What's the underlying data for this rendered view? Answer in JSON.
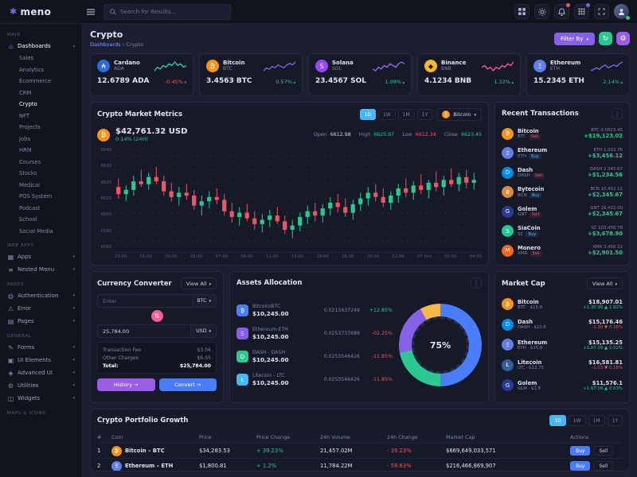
{
  "topbar": {
    "logo_text": "meno",
    "search_placeholder": "Search for Results..."
  },
  "page_header": {
    "title": "Crypto",
    "breadcrumb_root": "Dashboards",
    "breadcrumb_sep": "›",
    "breadcrumb_current": "Crypto",
    "filter_label": "Filter By"
  },
  "sidebar_items": [
    {
      "t": "section",
      "label": "MAIN"
    },
    {
      "t": "item",
      "label": "Dashboards",
      "icon": "⌂",
      "chev": "▴",
      "state": "active"
    },
    {
      "t": "child",
      "label": "Sales"
    },
    {
      "t": "child",
      "label": "Analytics"
    },
    {
      "t": "child",
      "label": "Ecommerce"
    },
    {
      "t": "child",
      "label": "CRM"
    },
    {
      "t": "child",
      "label": "Crypto",
      "state": "active"
    },
    {
      "t": "child",
      "label": "NFT"
    },
    {
      "t": "child",
      "label": "Projects"
    },
    {
      "t": "child",
      "label": "Jobs"
    },
    {
      "t": "child",
      "label": "HRM"
    },
    {
      "t": "child",
      "label": "Courses"
    },
    {
      "t": "child",
      "label": "Stocks"
    },
    {
      "t": "child",
      "label": "Medical"
    },
    {
      "t": "child",
      "label": "POS System"
    },
    {
      "t": "child",
      "label": "Podcast"
    },
    {
      "t": "child",
      "label": "School"
    },
    {
      "t": "child",
      "label": "Social Media"
    },
    {
      "t": "section",
      "label": "WEB APPS"
    },
    {
      "t": "item",
      "label": "Apps",
      "icon": "▦",
      "chev": "▾"
    },
    {
      "t": "item",
      "label": "Nested Menu",
      "icon": "≡",
      "chev": "▾"
    },
    {
      "t": "section",
      "label": "PAGES"
    },
    {
      "t": "item",
      "label": "Authentication",
      "icon": "◍",
      "chev": "▾"
    },
    {
      "t": "item",
      "label": "Error",
      "icon": "⚠",
      "chev": "▾"
    },
    {
      "t": "item",
      "label": "Pages",
      "icon": "▤",
      "chev": "▾"
    },
    {
      "t": "section",
      "label": "GENERAL"
    },
    {
      "t": "item",
      "label": "Forms",
      "icon": "✎",
      "chev": "▾"
    },
    {
      "t": "item",
      "label": "UI Elements",
      "icon": "▣",
      "chev": "▾"
    },
    {
      "t": "item",
      "label": "Advanced UI",
      "icon": "◈",
      "chev": "▾"
    },
    {
      "t": "item",
      "label": "Utilities",
      "icon": "⚙",
      "chev": "▾"
    },
    {
      "t": "item",
      "label": "Widgets",
      "icon": "◫",
      "chev": "▾"
    },
    {
      "t": "section",
      "label": "MAPS & ICONS"
    }
  ],
  "crypto_cards": [
    {
      "name": "Cardano",
      "symbol": "ADA",
      "value": "12.6789 ADA",
      "change": "-0.45%",
      "dir": "down",
      "icon": "₳",
      "icon_class": "c-ada",
      "spark": "cardano-spark"
    },
    {
      "name": "Bitcoin",
      "symbol": "BTC",
      "value": "3.4563 BTC",
      "change": "0.57%",
      "dir": "up",
      "icon": "₿",
      "icon_class": "c-btc",
      "spark": "bitcoin-spark"
    },
    {
      "name": "Solana",
      "symbol": "SOL",
      "value": "23.4567 SOL",
      "change": "1.09%",
      "dir": "up",
      "icon": "S",
      "icon_class": "c-sol",
      "spark": "solana-spark"
    },
    {
      "name": "Binance",
      "symbol": "BNB",
      "value": "4.1234 BNB",
      "change": "1.32%",
      "dir": "up",
      "icon": "◆",
      "icon_class": "c-bnb",
      "spark": "binance-spark"
    },
    {
      "name": "Ethereum",
      "symbol": "ETH",
      "value": "15.2345 ETH",
      "change": "2.14%",
      "dir": "up",
      "icon": "Ξ",
      "icon_class": "c-eth",
      "spark": "ethereum-spark"
    }
  ],
  "metrics": {
    "title": "Crypto Market Metrics",
    "coin": "Bitcoin",
    "coin_icon": "₿",
    "price": "$42,761.32 USD",
    "change": "0.14% (24H)",
    "ranges": [
      {
        "label": "1D",
        "state": "active"
      },
      {
        "label": "1W"
      },
      {
        "label": "1M"
      },
      {
        "label": "1Y"
      }
    ],
    "stats": [
      {
        "label": "Open",
        "value": "6612.98",
        "cls": "stat-plain"
      },
      {
        "label": "High",
        "value": "6625.97",
        "cls": "stat-up"
      },
      {
        "label": "Low",
        "value": "6612.34",
        "cls": "stat-down"
      },
      {
        "label": "Close",
        "value": "6623.45",
        "cls": "stat-up"
      }
    ]
  },
  "transactions": {
    "title": "Recent Transactions",
    "rows": [
      {
        "name": "Bitcoin",
        "symbol": "BTC",
        "side": "Sell",
        "side_cls": "badge-sell",
        "icon": "₿",
        "icon_class": "c-btc",
        "sub": "BTC 0.0823.45",
        "amount": "+$19,123.02"
      },
      {
        "name": "Ethereum",
        "symbol": "ETH",
        "side": "Buy",
        "side_cls": "badge-buy",
        "icon": "Ξ",
        "icon_class": "c-eth",
        "sub": "ETH 1.032.76",
        "amount": "+$3,456.12"
      },
      {
        "name": "Dash",
        "symbol": "DASH",
        "side": "Sell",
        "side_cls": "badge-sell",
        "icon": "D",
        "icon_class": "c-dash",
        "sub": "DASH 2.345.67",
        "amount": "+$1,234.56"
      },
      {
        "name": "Bytecoin",
        "symbol": "BCN",
        "side": "Buy",
        "side_cls": "badge-buy",
        "icon": "B",
        "icon_class": "c-bcn",
        "sub": "BCN 10.432.12",
        "amount": "+$2,345.67"
      },
      {
        "name": "Golem",
        "symbol": "GNT",
        "side": "Sell",
        "side_cls": "badge-sell",
        "icon": "G",
        "icon_class": "c-gnt",
        "sub": "GNT 16.432.00",
        "amount": "+$2,345.67"
      },
      {
        "name": "SiaCoin",
        "symbol": "SC",
        "side": "Buy",
        "side_cls": "badge-buy",
        "icon": "S",
        "icon_class": "c-sc",
        "sub": "SC 103.456.78",
        "amount": "+$3,678.90"
      },
      {
        "name": "Monero",
        "symbol": "XMR",
        "side": "Sell",
        "side_cls": "badge-sell",
        "icon": "M",
        "icon_class": "c-xmr",
        "sub": "XMR 3.456.32",
        "amount": "+$2,901.50"
      }
    ]
  },
  "converter": {
    "title": "Currency Converter",
    "view_all": "View All",
    "from_placeholder": "Enter",
    "from_currency": "BTC",
    "to_value": "25,784.00",
    "to_currency": "USD",
    "fee_label": "Transaction Fee",
    "fee_value": "$3.04",
    "charges_label": "Other Charges",
    "charges_value": "$6.55",
    "total_label": "Total:",
    "total_value": "$25,784.00",
    "history_label": "History →",
    "convert_label": "Convert →"
  },
  "allocation": {
    "title": "Assets Allocation",
    "rows": [
      {
        "name": "Bitcoin/BTC",
        "value": "$10,245.00",
        "qty": "0.0215637249",
        "change": "+12.85%",
        "dir": "up",
        "icon": "₿",
        "icon_class": "a-btc"
      },
      {
        "name": "Ethereum-ETH",
        "value": "$10,245.00",
        "qty": "0.0253737689",
        "change": "-02.25%",
        "dir": "down",
        "icon": "Ξ",
        "icon_class": "a-eth"
      },
      {
        "name": "DASH - DASH",
        "value": "$10,245.00",
        "qty": "0.0253546426",
        "change": "-11.85%",
        "dir": "down",
        "icon": "D",
        "icon_class": "a-dash"
      },
      {
        "name": "Litecoin - LTC",
        "value": "$10,245.00",
        "qty": "0.0253546426",
        "change": "-11.85%",
        "dir": "down",
        "icon": "Ł",
        "icon_class": "a-ltc"
      }
    ]
  },
  "market_cap": {
    "title": "Market Cap",
    "view_all": "View All",
    "rows": [
      {
        "name": "Bitcoin",
        "sub": "BTC · $15.8",
        "icon": "₿",
        "icon_class": "c-btc",
        "value": "$18,907.01",
        "change": "+1.30.90 ▲ 1.92%",
        "dir": "up"
      },
      {
        "name": "Dash",
        "sub": "DASH · $23.8",
        "icon": "D",
        "icon_class": "c-dash",
        "value": "$15,176.46",
        "change": "-1.30 ▼ 0.18%",
        "dir": "down"
      },
      {
        "name": "Ethereum",
        "sub": "ETH · $15.8",
        "icon": "Ξ",
        "icon_class": "c-eth",
        "value": "$15,135.25",
        "change": "+1.07.09 ▲ 1.02%",
        "dir": "up"
      },
      {
        "name": "Litecoin",
        "sub": "LTC · $13.75",
        "icon": "Ł",
        "icon_class": "c-ltc",
        "value": "$16,581.81",
        "change": "-1.03 ▼ 0.18%",
        "dir": "down"
      },
      {
        "name": "Golem",
        "sub": "GLM · $1.8",
        "icon": "G",
        "icon_class": "c-gnt",
        "value": "$11,576.1",
        "change": "+1.67.08 ▲ 0.03%",
        "dir": "up"
      }
    ]
  },
  "portfolio": {
    "title": "Crypto Portfolio Growth",
    "ranges": [
      {
        "label": "1D",
        "state": "active"
      },
      {
        "label": "1W"
      },
      {
        "label": "1M"
      },
      {
        "label": "1Y"
      }
    ],
    "columns": [
      "#",
      "Coin",
      "Price",
      "Price Change",
      "24h Volume",
      "24h Change",
      "Market Cap",
      "Actions"
    ],
    "rows": [
      {
        "num": "1",
        "coin": "Bitcoin – BTC",
        "icon": "₿",
        "icon_class": "c-btc",
        "price": "$34,283.53",
        "price_change": "+ 39.23%",
        "pc_dir": "up",
        "volume": "21,457.02M",
        "day_change": "- 39.23%",
        "dc_dir": "down",
        "mcap": "$669,649,033,571",
        "buy": "Buy",
        "sell": "Sell"
      },
      {
        "num": "2",
        "coin": "Ethereum – ETH",
        "icon": "Ξ",
        "icon_class": "c-eth",
        "price": "$1,800.81",
        "price_change": "+ 1.2%",
        "pc_dir": "up",
        "volume": "11,784.22M",
        "day_change": "- 58.63%",
        "dc_dir": "down",
        "mcap": "$216,466,869,907",
        "buy": "Buy",
        "sell": "Sell"
      }
    ]
  },
  "colors": {
    "primary": "#8561e8",
    "success": "#2bc892",
    "danger": "#ef5661",
    "info": "#4a7dfc",
    "pink": "#fd5d93",
    "warning": "#f5b849",
    "bitcoin_orange": "#f7931a"
  },
  "chart_data": [
    {
      "type": "candlestick",
      "name": "crypto-market-metrics",
      "title": "Crypto Market Metrics",
      "symbol": "Bitcoin",
      "up_color": "#2bc892",
      "down_color": "#ef5661",
      "ylim": [
        6578,
        6646
      ],
      "y_labels": [
        6640,
        6630,
        6620,
        6610,
        6600,
        6590,
        6580
      ],
      "x_labels": [
        "23:00",
        "01:00",
        "03:00",
        "05:00",
        "07:00",
        "09:00",
        "11:00",
        "13:00",
        "16:00",
        "18:00",
        "20:00",
        "22:00",
        "07 Oct",
        "02:00",
        "04:00"
      ],
      "ohlc": [
        [
          6618,
          6624,
          6610,
          6613
        ],
        [
          6613,
          6619,
          6608,
          6616
        ],
        [
          6616,
          6626,
          6612,
          6622
        ],
        [
          6622,
          6630,
          6618,
          6620
        ],
        [
          6620,
          6628,
          6616,
          6625
        ],
        [
          6625,
          6632,
          6620,
          6622
        ],
        [
          6622,
          6626,
          6612,
          6615
        ],
        [
          6615,
          6621,
          6608,
          6611
        ],
        [
          6611,
          6618,
          6605,
          6614
        ],
        [
          6614,
          6620,
          6609,
          6612
        ],
        [
          6612,
          6616,
          6602,
          6605
        ],
        [
          6605,
          6612,
          6598,
          6608
        ],
        [
          6608,
          6615,
          6603,
          6611
        ],
        [
          6611,
          6617,
          6606,
          6609
        ],
        [
          6609,
          6613,
          6598,
          6601
        ],
        [
          6601,
          6607,
          6593,
          6597
        ],
        [
          6597,
          6604,
          6591,
          6600
        ],
        [
          6600,
          6606,
          6594,
          6596
        ],
        [
          6596,
          6601,
          6588,
          6592
        ],
        [
          6592,
          6599,
          6586,
          6595
        ],
        [
          6595,
          6602,
          6590,
          6598
        ],
        [
          6598,
          6604,
          6592,
          6594
        ],
        [
          6594,
          6598,
          6585,
          6588
        ],
        [
          6588,
          6595,
          6582,
          6591
        ],
        [
          6591,
          6600,
          6587,
          6597
        ],
        [
          6597,
          6605,
          6592,
          6601
        ],
        [
          6601,
          6607,
          6594,
          6598
        ],
        [
          6598,
          6606,
          6593,
          6603
        ],
        [
          6603,
          6611,
          6598,
          6607
        ],
        [
          6607,
          6613,
          6600,
          6604
        ],
        [
          6604,
          6610,
          6597,
          6600
        ],
        [
          6600,
          6609,
          6595,
          6606
        ],
        [
          6606,
          6614,
          6601,
          6610
        ],
        [
          6610,
          6618,
          6605,
          6614
        ],
        [
          6614,
          6620,
          6608,
          6611
        ],
        [
          6611,
          6617,
          6604,
          6607
        ],
        [
          6607,
          6615,
          6602,
          6612
        ],
        [
          6612,
          6620,
          6607,
          6617
        ],
        [
          6617,
          6624,
          6611,
          6614
        ],
        [
          6614,
          6622,
          6609,
          6619
        ],
        [
          6619,
          6627,
          6613,
          6616
        ],
        [
          6616,
          6623,
          6610,
          6621
        ],
        [
          6621,
          6629,
          6615,
          6618
        ],
        [
          6618,
          6626,
          6612,
          6623
        ],
        [
          6623,
          6631,
          6618,
          6620
        ],
        [
          6620,
          6628,
          6615,
          6625
        ],
        [
          6625,
          6630,
          6617,
          6621
        ],
        [
          6621,
          6628,
          6616,
          6623
        ]
      ]
    },
    {
      "type": "line",
      "name": "cardano-spark",
      "color": "#2ed3b7",
      "values": [
        3,
        5,
        4,
        6,
        5,
        7,
        6,
        8,
        6,
        7,
        5,
        6
      ]
    },
    {
      "type": "line",
      "name": "bitcoin-spark",
      "color": "#8561e8",
      "values": [
        2,
        4,
        3,
        5,
        4,
        6,
        5,
        4,
        6,
        7,
        6,
        8
      ]
    },
    {
      "type": "line",
      "name": "solana-spark",
      "color": "#9b6bff",
      "values": [
        4,
        3,
        5,
        4,
        6,
        5,
        7,
        6,
        5,
        7,
        8,
        7
      ]
    },
    {
      "type": "line",
      "name": "binance-spark",
      "color": "#fd5d93",
      "values": [
        5,
        6,
        4,
        5,
        3,
        5,
        4,
        6,
        5,
        7,
        6,
        8
      ]
    },
    {
      "type": "line",
      "name": "ethereum-spark",
      "color": "#7b6cf6",
      "values": [
        3,
        4,
        5,
        4,
        6,
        7,
        5,
        6,
        7,
        6,
        8,
        9
      ]
    },
    {
      "type": "donut",
      "name": "assets-allocation",
      "center_label": "75%",
      "segments": [
        {
          "label": "Bitcoin",
          "value": 50,
          "color": "#4a7dfc"
        },
        {
          "label": "Ethereum",
          "value": 22,
          "color": "#2bc892"
        },
        {
          "label": "Dash",
          "value": 20,
          "color": "#8561e8"
        },
        {
          "label": "Litecoin",
          "value": 8,
          "color": "#f5b849"
        }
      ]
    }
  ]
}
